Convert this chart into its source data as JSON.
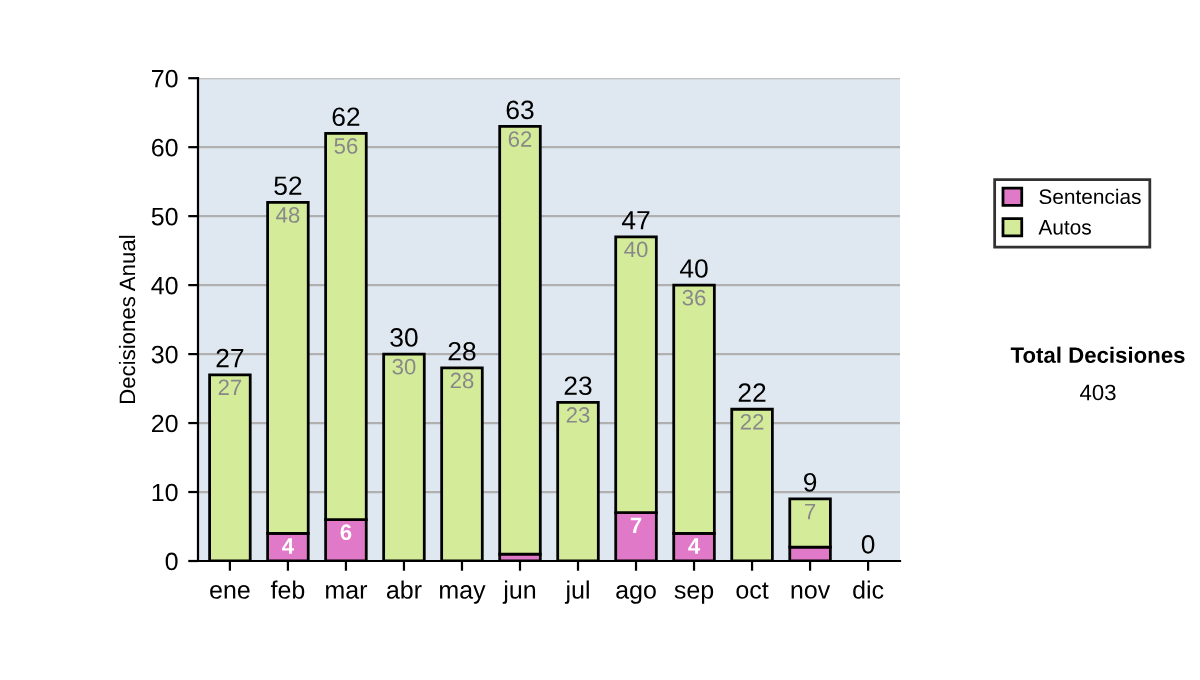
{
  "chart_data": {
    "type": "bar",
    "stacked": true,
    "ylabel": "Decisiones Anual",
    "categories": [
      "ene",
      "feb",
      "mar",
      "abr",
      "may",
      "jun",
      "jul",
      "ago",
      "sep",
      "oct",
      "nov",
      "dic"
    ],
    "series": [
      {
        "name": "Sentencias",
        "color": "#e07ac8",
        "values": [
          0,
          4,
          6,
          0,
          0,
          1,
          0,
          7,
          4,
          0,
          2,
          0
        ],
        "value_labels": [
          null,
          "4",
          "6",
          null,
          null,
          null,
          null,
          "7",
          "4",
          null,
          null,
          null
        ]
      },
      {
        "name": "Autos",
        "color": "#d4eb9a",
        "values": [
          27,
          48,
          56,
          30,
          28,
          62,
          23,
          40,
          36,
          22,
          7,
          0
        ],
        "value_labels": [
          "27",
          "48",
          "56",
          "30",
          "28",
          "62",
          "23",
          "40",
          "36",
          "22",
          "7",
          null
        ]
      }
    ],
    "totals": [
      "27",
      "52",
      "62",
      "30",
      "28",
      "63",
      "23",
      "47",
      "40",
      "22",
      "9",
      "0"
    ],
    "ylim": [
      0,
      70
    ],
    "yticks": [
      0,
      10,
      20,
      30,
      40,
      50,
      60,
      70
    ],
    "grid": "y",
    "legend": "right",
    "annotations": [
      "Total Decisiones",
      "403"
    ]
  }
}
